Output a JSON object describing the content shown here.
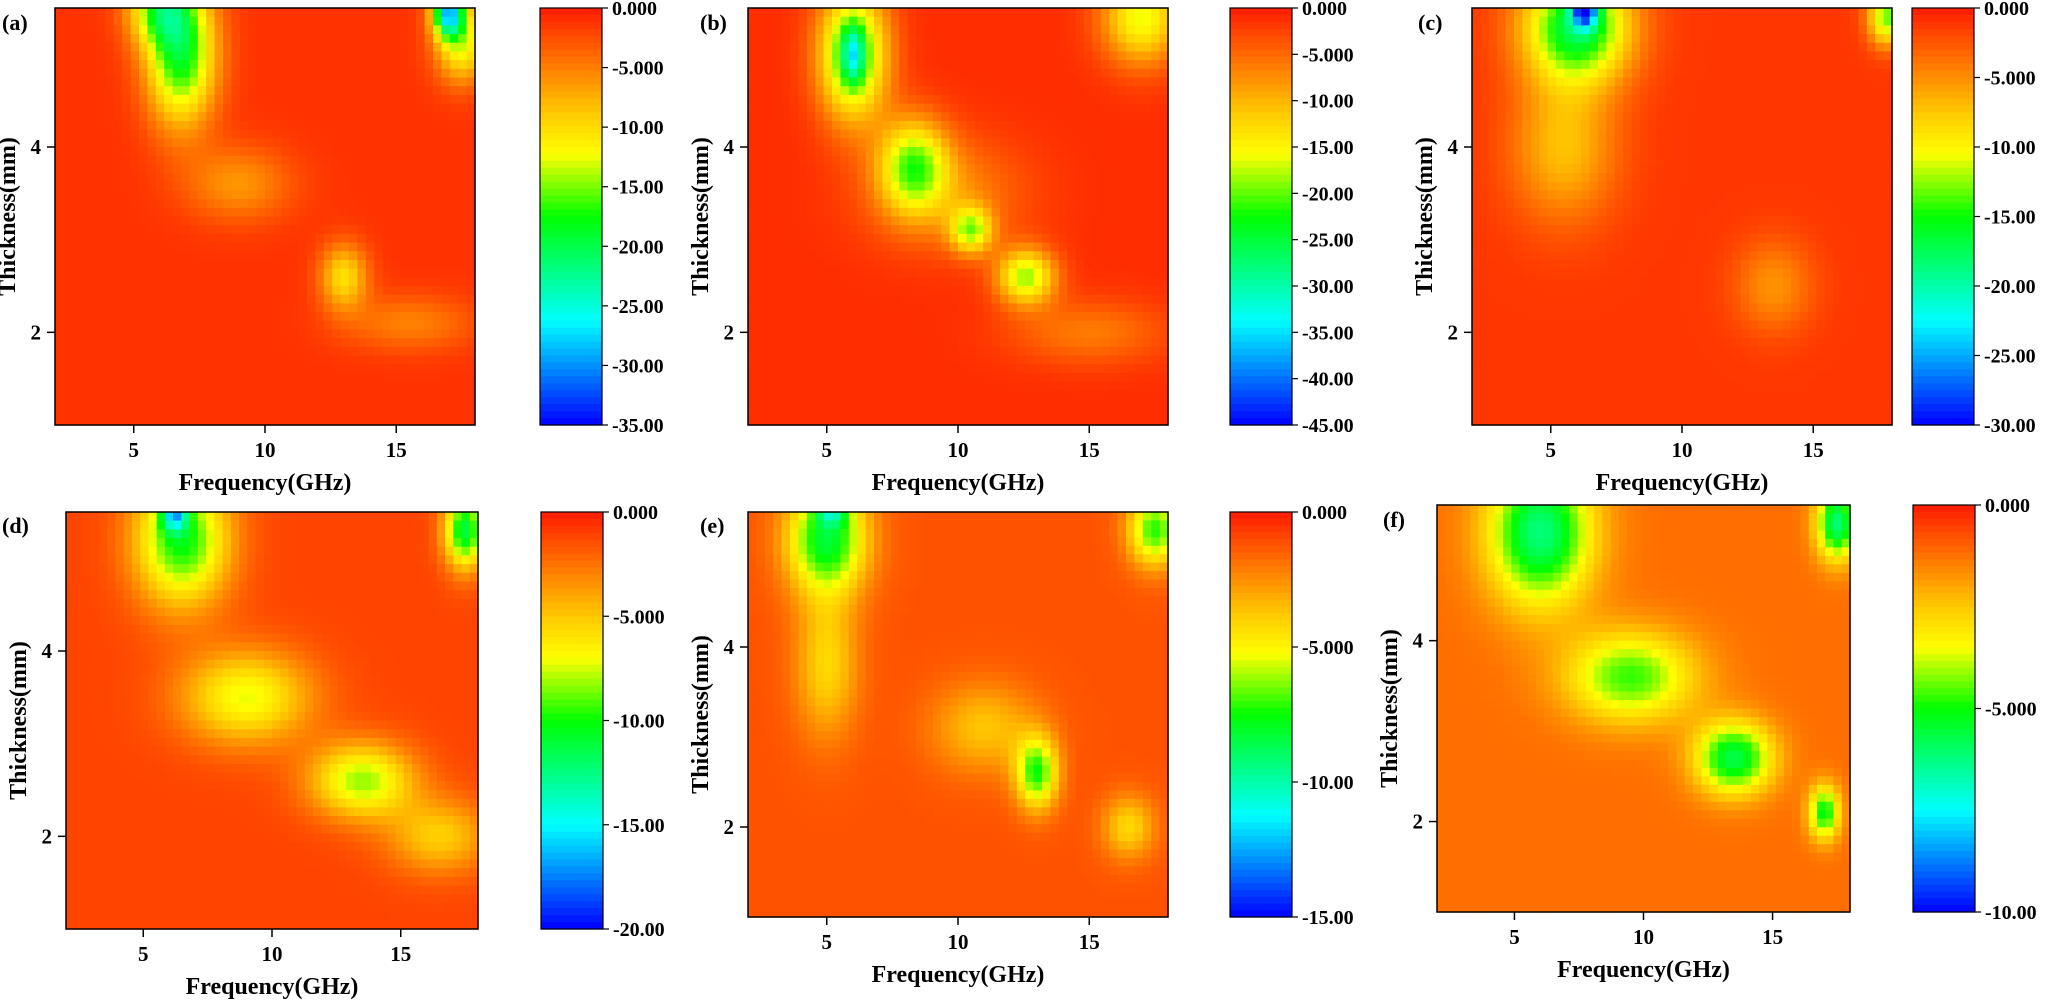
{
  "figure": {
    "x_axis_title": "Frequency(GHz)",
    "y_axis_title": "Thickness(mm)"
  },
  "chart_data": [
    {
      "type": "heatmap",
      "panel": "(a)",
      "xlabel": "Frequency(GHz)",
      "ylabel": "Thickness(mm)",
      "xlim": [
        2,
        18
      ],
      "ylim": [
        1,
        5.5
      ],
      "xticks": [
        "5",
        "10",
        "15"
      ],
      "yticks": [
        "2",
        "4"
      ],
      "color_range": [
        -35,
        0
      ],
      "colorbar_ticks": [
        "0.000",
        "-5.000",
        "-10.00",
        "-15.00",
        "-20.00",
        "-25.00",
        "-30.00",
        "-35.00"
      ],
      "colors": {
        "max": "#ff1a00",
        "mid": "#ffff00",
        "low": "#00ff00",
        "min": "#0000ff"
      },
      "absorption_features": [
        {
          "f": 6.8,
          "d": 5.0,
          "value": -17,
          "sf": 1.3,
          "sd": 0.75
        },
        {
          "f": 6.0,
          "d": 5.5,
          "value": -12,
          "sf": 1.2,
          "sd": 0.4
        },
        {
          "f": 17.0,
          "d": 5.45,
          "value": -25,
          "sf": 0.6,
          "sd": 0.25
        },
        {
          "f": 17.5,
          "d": 5.1,
          "value": -11,
          "sf": 1.0,
          "sd": 0.4
        },
        {
          "f": 13.0,
          "d": 2.6,
          "value": -9,
          "sf": 0.9,
          "sd": 0.35
        },
        {
          "f": 9.0,
          "d": 3.6,
          "value": -5,
          "sf": 2.0,
          "sd": 0.4
        },
        {
          "f": 15.5,
          "d": 2.1,
          "value": -4,
          "sf": 2.5,
          "sd": 0.3
        }
      ]
    },
    {
      "type": "heatmap",
      "panel": "(b)",
      "xlabel": "Frequency(GHz)",
      "ylabel": "Thickness(mm)",
      "xlim": [
        2,
        18
      ],
      "ylim": [
        1,
        5.5
      ],
      "xticks": [
        "5",
        "10",
        "15"
      ],
      "yticks": [
        "2",
        "4"
      ],
      "color_range": [
        -45,
        0
      ],
      "colorbar_ticks": [
        "0.000",
        "-5.000",
        "-10.00",
        "-15.00",
        "-20.00",
        "-25.00",
        "-30.00",
        "-35.00",
        "-40.00",
        "-45.00"
      ],
      "colors": {
        "max": "#ff1a00",
        "mid": "#ffff00",
        "low": "#00ff00",
        "min": "#0000ff"
      },
      "absorption_features": [
        {
          "f": 6.0,
          "d": 5.0,
          "value": -22,
          "sf": 1.3,
          "sd": 0.7
        },
        {
          "f": 6.0,
          "d": 5.0,
          "value": -12,
          "sf": 0.4,
          "sd": 0.3
        },
        {
          "f": 8.3,
          "d": 3.8,
          "value": -17,
          "sf": 1.3,
          "sd": 0.5
        },
        {
          "f": 10.5,
          "d": 3.1,
          "value": -15,
          "sf": 0.8,
          "sd": 0.25
        },
        {
          "f": 12.6,
          "d": 2.6,
          "value": -17,
          "sf": 1.1,
          "sd": 0.3
        },
        {
          "f": 17.0,
          "d": 5.4,
          "value": -15,
          "sf": 1.5,
          "sd": 0.5
        },
        {
          "f": 9.5,
          "d": 3.5,
          "value": -6,
          "sf": 3.0,
          "sd": 0.6
        },
        {
          "f": 15.0,
          "d": 2.0,
          "value": -5,
          "sf": 3.0,
          "sd": 0.35
        }
      ]
    },
    {
      "type": "heatmap",
      "panel": "(c)",
      "xlabel": "Frequency(GHz)",
      "ylabel": "Thickness(mm)",
      "xlim": [
        2,
        18
      ],
      "ylim": [
        1,
        5.5
      ],
      "xticks": [
        "5",
        "10",
        "15"
      ],
      "yticks": [
        "2",
        "4"
      ],
      "color_range": [
        -30,
        0
      ],
      "colorbar_ticks": [
        "0.000",
        "-5.000",
        "-10.00",
        "-15.00",
        "-20.00",
        "-25.00",
        "-30.00"
      ],
      "colors": {
        "max": "#ff1a00",
        "mid": "#ffff00",
        "low": "#00ff00",
        "min": "#0000ff"
      },
      "absorption_features": [
        {
          "f": 6.0,
          "d": 5.3,
          "value": -16,
          "sf": 2.0,
          "sd": 0.6
        },
        {
          "f": 6.3,
          "d": 5.5,
          "value": -18,
          "sf": 0.5,
          "sd": 0.2
        },
        {
          "f": 17.8,
          "d": 5.4,
          "value": -12,
          "sf": 0.7,
          "sd": 0.3
        },
        {
          "f": 5.5,
          "d": 4.0,
          "value": -6,
          "sf": 2.0,
          "sd": 0.8
        },
        {
          "f": 13.5,
          "d": 2.5,
          "value": -4,
          "sf": 1.5,
          "sd": 0.5
        }
      ]
    },
    {
      "type": "heatmap",
      "panel": "(d)",
      "xlabel": "Frequency(GHz)",
      "ylabel": "Thickness(mm)",
      "xlim": [
        2,
        18
      ],
      "ylim": [
        1,
        5.5
      ],
      "xticks": [
        "5",
        "10",
        "15"
      ],
      "yticks": [
        "2",
        "4"
      ],
      "color_range": [
        -20,
        0
      ],
      "colorbar_ticks": [
        "0.000",
        "-5.000",
        "-10.00",
        "-15.00",
        "-20.00"
      ],
      "colors": {
        "max": "#ff1a00",
        "mid": "#ffff00",
        "low": "#00ff00",
        "min": "#0000ff"
      },
      "absorption_features": [
        {
          "f": 6.5,
          "d": 5.2,
          "value": -9,
          "sf": 1.8,
          "sd": 0.7
        },
        {
          "f": 6.2,
          "d": 5.5,
          "value": -9,
          "sf": 0.5,
          "sd": 0.2
        },
        {
          "f": 9.0,
          "d": 3.5,
          "value": -6,
          "sf": 2.5,
          "sd": 0.5
        },
        {
          "f": 13.5,
          "d": 2.6,
          "value": -7,
          "sf": 2.0,
          "sd": 0.4
        },
        {
          "f": 17.5,
          "d": 5.3,
          "value": -10,
          "sf": 0.8,
          "sd": 0.4
        },
        {
          "f": 16.5,
          "d": 2.0,
          "value": -4,
          "sf": 2.0,
          "sd": 0.4
        }
      ]
    },
    {
      "type": "heatmap",
      "panel": "(e)",
      "xlabel": "Frequency(GHz)",
      "ylabel": "Thickness(mm)",
      "xlim": [
        2,
        18
      ],
      "ylim": [
        1,
        5.5
      ],
      "xticks": [
        "5",
        "10",
        "15"
      ],
      "yticks": [
        "2",
        "4"
      ],
      "color_range": [
        -15,
        0
      ],
      "colorbar_ticks": [
        "0.000",
        "-5.000",
        "-10.00",
        "-15.00"
      ],
      "colors": {
        "max": "#ff1a00",
        "mid": "#ffff00",
        "low": "#00ff00",
        "min": "#0000ff"
      },
      "absorption_features": [
        {
          "f": 5.0,
          "d": 5.2,
          "value": -7,
          "sf": 1.5,
          "sd": 0.6
        },
        {
          "f": 5.2,
          "d": 5.5,
          "value": -4,
          "sf": 0.6,
          "sd": 0.15
        },
        {
          "f": 5.0,
          "d": 3.8,
          "value": -3,
          "sf": 1.2,
          "sd": 0.8
        },
        {
          "f": 13.0,
          "d": 2.6,
          "value": -6,
          "sf": 0.8,
          "sd": 0.4
        },
        {
          "f": 17.5,
          "d": 5.3,
          "value": -6,
          "sf": 1.0,
          "sd": 0.4
        },
        {
          "f": 11.0,
          "d": 3.1,
          "value": -2.5,
          "sf": 2.0,
          "sd": 0.5
        },
        {
          "f": 16.5,
          "d": 2.0,
          "value": -3,
          "sf": 1.0,
          "sd": 0.35
        }
      ]
    },
    {
      "type": "heatmap",
      "panel": "(f)",
      "xlabel": "Frequency(GHz)",
      "ylabel": "Thickness(mm)",
      "xlim": [
        2,
        18
      ],
      "ylim": [
        1,
        5.5
      ],
      "xticks": [
        "5",
        "10",
        "15"
      ],
      "yticks": [
        "2",
        "4"
      ],
      "color_range": [
        -10,
        0
      ],
      "colorbar_ticks": [
        "0.000",
        "-5.000",
        "-10.00"
      ],
      "colors": {
        "max": "#ff1a00",
        "mid": "#ffff00",
        "low": "#00ff00",
        "min": "#0000ff"
      },
      "absorption_features": [
        {
          "f": 6.0,
          "d": 5.2,
          "value": -5,
          "sf": 2.0,
          "sd": 0.8
        },
        {
          "f": 9.5,
          "d": 3.6,
          "value": -3.5,
          "sf": 2.5,
          "sd": 0.5
        },
        {
          "f": 13.5,
          "d": 2.7,
          "value": -4.5,
          "sf": 1.5,
          "sd": 0.4
        },
        {
          "f": 17.0,
          "d": 2.1,
          "value": -4,
          "sf": 0.6,
          "sd": 0.3
        },
        {
          "f": 17.5,
          "d": 5.3,
          "value": -5,
          "sf": 0.8,
          "sd": 0.4
        }
      ]
    }
  ]
}
